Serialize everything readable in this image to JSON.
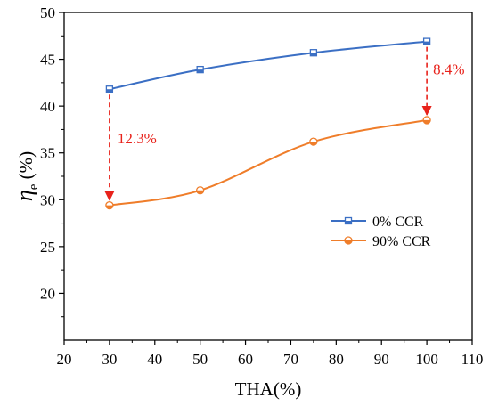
{
  "chart_data": {
    "type": "line",
    "xlabel": "THA(%)",
    "ylabel": "η",
    "ylabel_sub": "e",
    "ylabel_unit": " (%)",
    "xlim": [
      20,
      110
    ],
    "ylim": [
      15,
      50
    ],
    "xticks": [
      20,
      30,
      40,
      50,
      60,
      70,
      80,
      90,
      100,
      110
    ],
    "yticks": [
      20,
      25,
      30,
      35,
      40,
      45,
      50
    ],
    "legend_position": "center-right",
    "series": [
      {
        "name": "0% CCR",
        "color": "#3b6fc4",
        "marker": "square-half-filled",
        "x": [
          30,
          50,
          75,
          100
        ],
        "y": [
          41.8,
          43.9,
          45.7,
          46.9
        ]
      },
      {
        "name": "90% CCR",
        "color": "#ef7d2a",
        "marker": "circle-half-filled",
        "x": [
          30,
          50,
          75,
          100
        ],
        "y": [
          29.4,
          31.0,
          36.2,
          38.5
        ]
      }
    ],
    "annotations": [
      {
        "text": "12.3%",
        "x": 30,
        "y_from": 41.8,
        "y_to": 29.4,
        "color": "#e8221b"
      },
      {
        "text": "8.4%",
        "x": 100,
        "y_from": 46.9,
        "y_to": 38.5,
        "color": "#e8221b"
      }
    ]
  }
}
